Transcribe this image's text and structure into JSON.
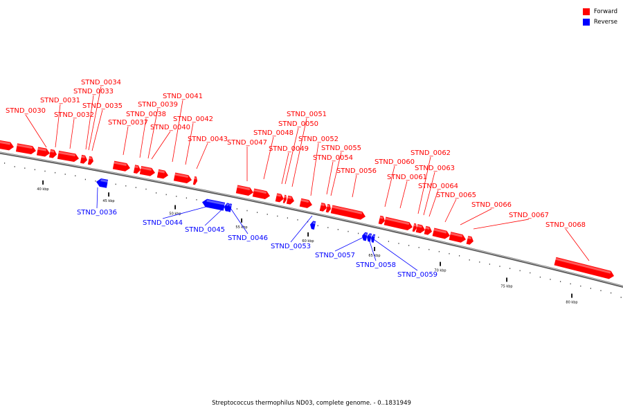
{
  "caption": "Streptococcus thermophilus ND03, complete genome. - 0..1831949",
  "colors": {
    "forward": "#ff0000",
    "reverse": "#0000ff",
    "backbone": "#888888"
  },
  "legend": [
    {
      "label": "Forward",
      "color": "#ff0000"
    },
    {
      "label": "Reverse",
      "color": "#0000ff"
    }
  ],
  "ticks": [
    "40 kbp",
    "45 kbp",
    "50 kbp",
    "55 kbp",
    "60 kbp",
    "65 kbp",
    "70 kbp",
    "75 kbp",
    "80 kbp"
  ],
  "genes": [
    {
      "id": "STND_0030",
      "strand": "forward"
    },
    {
      "id": "STND_0031",
      "strand": "forward"
    },
    {
      "id": "STND_0032",
      "strand": "forward"
    },
    {
      "id": "STND_0033",
      "strand": "forward"
    },
    {
      "id": "STND_0034",
      "strand": "forward"
    },
    {
      "id": "STND_0035",
      "strand": "forward"
    },
    {
      "id": "STND_0036",
      "strand": "reverse"
    },
    {
      "id": "STND_0037",
      "strand": "forward"
    },
    {
      "id": "STND_0038",
      "strand": "forward"
    },
    {
      "id": "STND_0039",
      "strand": "forward"
    },
    {
      "id": "STND_0040",
      "strand": "forward"
    },
    {
      "id": "STND_0041",
      "strand": "forward"
    },
    {
      "id": "STND_0042",
      "strand": "forward"
    },
    {
      "id": "STND_0043",
      "strand": "forward"
    },
    {
      "id": "STND_0044",
      "strand": "reverse"
    },
    {
      "id": "STND_0045",
      "strand": "reverse"
    },
    {
      "id": "STND_0046",
      "strand": "reverse"
    },
    {
      "id": "STND_0047",
      "strand": "forward"
    },
    {
      "id": "STND_0048",
      "strand": "forward"
    },
    {
      "id": "STND_0049",
      "strand": "forward"
    },
    {
      "id": "STND_0050",
      "strand": "forward"
    },
    {
      "id": "STND_0051",
      "strand": "forward"
    },
    {
      "id": "STND_0052",
      "strand": "forward"
    },
    {
      "id": "STND_0053",
      "strand": "reverse"
    },
    {
      "id": "STND_0054",
      "strand": "forward"
    },
    {
      "id": "STND_0055",
      "strand": "forward"
    },
    {
      "id": "STND_0056",
      "strand": "forward"
    },
    {
      "id": "STND_0057",
      "strand": "reverse"
    },
    {
      "id": "STND_0058",
      "strand": "reverse"
    },
    {
      "id": "STND_0059",
      "strand": "reverse"
    },
    {
      "id": "STND_0060",
      "strand": "forward"
    },
    {
      "id": "STND_0061",
      "strand": "forward"
    },
    {
      "id": "STND_0062",
      "strand": "forward"
    },
    {
      "id": "STND_0063",
      "strand": "forward"
    },
    {
      "id": "STND_0064",
      "strand": "forward"
    },
    {
      "id": "STND_0065",
      "strand": "forward"
    },
    {
      "id": "STND_0066",
      "strand": "forward"
    },
    {
      "id": "STND_0067",
      "strand": "forward"
    },
    {
      "id": "STND_0068",
      "strand": "forward"
    }
  ]
}
